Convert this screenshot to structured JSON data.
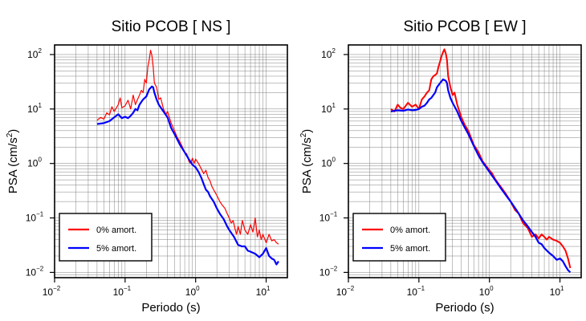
{
  "chart_data": [
    {
      "type": "line",
      "title": "Sitio PCOB [ NS ]",
      "xlabel": "Periodo (s)",
      "ylabel_main": "PSA (cm/s",
      "ylabel_sup": "2",
      "ylabel_close": ")",
      "x_scale": "log",
      "y_scale": "log",
      "xlim": [
        0.01,
        20
      ],
      "ylim": [
        0.008,
        150
      ],
      "grid": true,
      "legend_position": "bottom-left",
      "x_ticks": [
        {
          "base": "10",
          "exp": "−2",
          "value": 0.01
        },
        {
          "base": "10",
          "exp": "−1",
          "value": 0.1
        },
        {
          "base": "10",
          "exp": "0",
          "value": 1
        },
        {
          "base": "10",
          "exp": "1",
          "value": 10
        }
      ],
      "y_ticks": [
        {
          "base": "10",
          "exp": "−2",
          "value": 0.01
        },
        {
          "base": "10",
          "exp": "−1",
          "value": 0.1
        },
        {
          "base": "10",
          "exp": "0",
          "value": 1
        },
        {
          "base": "10",
          "exp": "1",
          "value": 10
        },
        {
          "base": "10",
          "exp": "2",
          "value": 100
        }
      ],
      "series": [
        {
          "name": "0% amort.",
          "color": "#ff0000",
          "x": [
            0.04,
            0.045,
            0.05,
            0.055,
            0.06,
            0.065,
            0.07,
            0.075,
            0.08,
            0.085,
            0.09,
            0.1,
            0.11,
            0.12,
            0.13,
            0.14,
            0.15,
            0.16,
            0.17,
            0.18,
            0.19,
            0.2,
            0.21,
            0.22,
            0.23,
            0.24,
            0.25,
            0.26,
            0.28,
            0.3,
            0.32,
            0.35,
            0.38,
            0.4,
            0.45,
            0.5,
            0.55,
            0.6,
            0.65,
            0.7,
            0.75,
            0.8,
            0.85,
            0.9,
            0.95,
            1.0,
            1.1,
            1.2,
            1.3,
            1.4,
            1.5,
            1.6,
            1.7,
            1.8,
            2.0,
            2.2,
            2.4,
            2.6,
            2.8,
            3.0,
            3.2,
            3.4,
            3.6,
            3.8,
            4.0,
            4.3,
            4.6,
            5.0,
            5.5,
            6.0,
            6.5,
            7.0,
            7.5,
            8.0,
            8.5,
            9.0,
            10.0,
            11.0,
            12.0,
            13.0,
            14.0,
            15.0
          ],
          "y": [
            6.2,
            7.0,
            6.5,
            8.5,
            7.8,
            11.0,
            9.0,
            10.5,
            12.0,
            16.0,
            10.5,
            11.5,
            14.5,
            10.0,
            18.0,
            12.0,
            15.0,
            18.0,
            22.0,
            20.0,
            35.0,
            30.0,
            60.0,
            80.0,
            120.0,
            95.0,
            60.0,
            30.0,
            25.0,
            15.0,
            16.0,
            10.0,
            8.0,
            9.0,
            5.5,
            4.0,
            3.0,
            2.5,
            2.0,
            1.6,
            1.5,
            1.1,
            1.0,
            1.25,
            1.0,
            1.2,
            1.0,
            0.8,
            0.65,
            0.75,
            0.55,
            0.48,
            0.38,
            0.33,
            0.26,
            0.2,
            0.17,
            0.15,
            0.12,
            0.1,
            0.08,
            0.09,
            0.065,
            0.05,
            0.07,
            0.05,
            0.09,
            0.06,
            0.05,
            0.075,
            0.055,
            0.1,
            0.045,
            0.06,
            0.04,
            0.05,
            0.035,
            0.05,
            0.038,
            0.04,
            0.035,
            0.033
          ]
        },
        {
          "name": "5% amort.",
          "color": "#0000ff",
          "x": [
            0.04,
            0.05,
            0.06,
            0.07,
            0.08,
            0.09,
            0.1,
            0.11,
            0.12,
            0.13,
            0.14,
            0.15,
            0.16,
            0.17,
            0.18,
            0.2,
            0.22,
            0.24,
            0.25,
            0.26,
            0.28,
            0.3,
            0.35,
            0.4,
            0.45,
            0.5,
            0.6,
            0.7,
            0.8,
            0.9,
            1.0,
            1.1,
            1.2,
            1.3,
            1.4,
            1.5,
            1.6,
            1.8,
            2.0,
            2.2,
            2.5,
            2.8,
            3.0,
            3.5,
            4.0,
            4.5,
            5.0,
            5.5,
            6.0,
            7.0,
            8.0,
            9.0,
            10.0,
            11.0,
            12.0,
            13.0,
            14.0,
            15.0
          ],
          "y": [
            5.3,
            5.5,
            6.0,
            7.0,
            8.0,
            6.8,
            7.2,
            6.8,
            7.5,
            8.5,
            10.0,
            9.5,
            12.0,
            13.5,
            15.0,
            17.0,
            23.0,
            26.0,
            25.0,
            20.0,
            15.0,
            12.0,
            9.0,
            7.0,
            4.5,
            3.5,
            2.2,
            1.6,
            1.2,
            0.95,
            0.85,
            0.7,
            0.55,
            0.42,
            0.33,
            0.3,
            0.25,
            0.2,
            0.15,
            0.12,
            0.095,
            0.07,
            0.06,
            0.045,
            0.032,
            0.03,
            0.03,
            0.025,
            0.024,
            0.022,
            0.019,
            0.022,
            0.028,
            0.02,
            0.018,
            0.017,
            0.014,
            0.016
          ]
        }
      ]
    },
    {
      "type": "line",
      "title": "Sitio PCOB [ EW ]",
      "xlabel": "Periodo (s)",
      "ylabel_main": "PSA (cm/s",
      "ylabel_sup": "2",
      "ylabel_close": ")",
      "x_scale": "log",
      "y_scale": "log",
      "xlim": [
        0.01,
        20
      ],
      "ylim": [
        0.008,
        150
      ],
      "grid": true,
      "legend_position": "bottom-left",
      "x_ticks": [
        {
          "base": "10",
          "exp": "−2",
          "value": 0.01
        },
        {
          "base": "10",
          "exp": "−1",
          "value": 0.1
        },
        {
          "base": "10",
          "exp": "0",
          "value": 1
        },
        {
          "base": "10",
          "exp": "1",
          "value": 10
        }
      ],
      "y_ticks": [
        {
          "base": "10",
          "exp": "−2",
          "value": 0.01
        },
        {
          "base": "10",
          "exp": "−1",
          "value": 0.1
        },
        {
          "base": "10",
          "exp": "0",
          "value": 1
        },
        {
          "base": "10",
          "exp": "1",
          "value": 10
        },
        {
          "base": "10",
          "exp": "2",
          "value": 100
        }
      ],
      "series": [
        {
          "name": "0% amort.",
          "color": "#ff0000",
          "x": [
            0.04,
            0.045,
            0.05,
            0.055,
            0.06,
            0.07,
            0.08,
            0.09,
            0.1,
            0.11,
            0.12,
            0.13,
            0.14,
            0.15,
            0.16,
            0.17,
            0.18,
            0.19,
            0.2,
            0.21,
            0.22,
            0.23,
            0.24,
            0.25,
            0.26,
            0.28,
            0.3,
            0.32,
            0.35,
            0.4,
            0.45,
            0.5,
            0.6,
            0.7,
            0.8,
            0.9,
            1.0,
            1.1,
            1.2,
            1.3,
            1.5,
            1.7,
            2.0,
            2.3,
            2.6,
            3.0,
            3.5,
            4.0,
            4.5,
            5.0,
            5.5,
            6.0,
            6.5,
            7.0,
            8.0,
            9.0,
            10.0,
            11.0,
            12.0,
            13.0,
            14.0
          ],
          "y": [
            10.0,
            9.0,
            12.0,
            10.5,
            10.0,
            13.0,
            11.0,
            12.0,
            10.0,
            15.0,
            17.0,
            20.0,
            22.0,
            35.0,
            40.0,
            42.0,
            45.0,
            60.0,
            75.0,
            95.0,
            110.0,
            125.0,
            105.0,
            80.0,
            40.0,
            25.0,
            18.0,
            20.0,
            12.0,
            7.0,
            5.0,
            4.0,
            2.2,
            1.6,
            1.1,
            0.9,
            0.75,
            0.65,
            0.52,
            0.45,
            0.35,
            0.28,
            0.2,
            0.14,
            0.12,
            0.08,
            0.065,
            0.045,
            0.05,
            0.042,
            0.05,
            0.045,
            0.04,
            0.045,
            0.04,
            0.038,
            0.035,
            0.03,
            0.025,
            0.018,
            0.012
          ]
        },
        {
          "name": "5% amort.",
          "color": "#0000ff",
          "x": [
            0.04,
            0.05,
            0.06,
            0.07,
            0.08,
            0.09,
            0.1,
            0.11,
            0.12,
            0.13,
            0.14,
            0.15,
            0.16,
            0.17,
            0.18,
            0.2,
            0.22,
            0.24,
            0.25,
            0.26,
            0.28,
            0.3,
            0.35,
            0.4,
            0.45,
            0.5,
            0.6,
            0.7,
            0.8,
            0.9,
            1.0,
            1.2,
            1.5,
            1.8,
            2.0,
            2.5,
            3.0,
            3.5,
            4.0,
            4.5,
            5.0,
            5.5,
            6.0,
            7.0,
            8.0,
            9.0,
            10.0,
            11.0,
            12.0,
            13.0,
            14.0
          ],
          "y": [
            9.0,
            9.5,
            9.3,
            9.8,
            9.5,
            9.6,
            10.0,
            11.0,
            11.5,
            13.0,
            15.0,
            16.0,
            18.0,
            20.0,
            25.0,
            30.0,
            35.0,
            33.0,
            30.0,
            22.0,
            16.0,
            13.0,
            9.0,
            6.0,
            4.5,
            3.5,
            2.1,
            1.4,
            1.05,
            0.85,
            0.7,
            0.5,
            0.33,
            0.24,
            0.2,
            0.13,
            0.09,
            0.07,
            0.055,
            0.045,
            0.035,
            0.033,
            0.028,
            0.023,
            0.02,
            0.017,
            0.018,
            0.016,
            0.013,
            0.011,
            0.01
          ]
        }
      ]
    }
  ]
}
